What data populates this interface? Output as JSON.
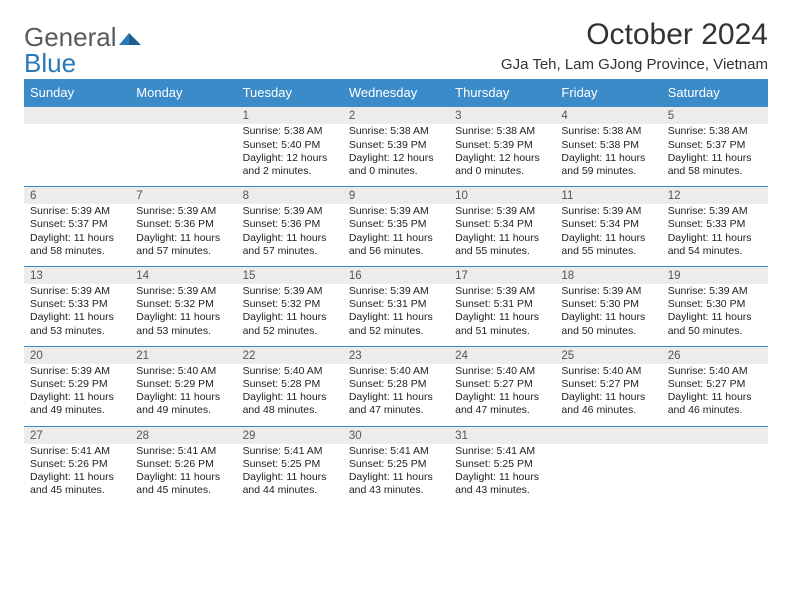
{
  "brand": {
    "part1": "General",
    "part2": "Blue"
  },
  "title": "October 2024",
  "location": "GJa Teh, Lam GJong Province, Vietnam",
  "colors": {
    "header_bg": "#3b8bc9",
    "header_text": "#ffffff",
    "daynum_bg": "#ececec",
    "daynum_border": "#3b8bc9",
    "brand_gray": "#5a5a5a",
    "brand_blue": "#2a7ab9"
  },
  "weekdays": [
    "Sunday",
    "Monday",
    "Tuesday",
    "Wednesday",
    "Thursday",
    "Friday",
    "Saturday"
  ],
  "first_weekday_index": 2,
  "days": [
    {
      "n": 1,
      "rise": "5:38 AM",
      "set": "5:40 PM",
      "dl": "12 hours and 2 minutes."
    },
    {
      "n": 2,
      "rise": "5:38 AM",
      "set": "5:39 PM",
      "dl": "12 hours and 0 minutes."
    },
    {
      "n": 3,
      "rise": "5:38 AM",
      "set": "5:39 PM",
      "dl": "12 hours and 0 minutes."
    },
    {
      "n": 4,
      "rise": "5:38 AM",
      "set": "5:38 PM",
      "dl": "11 hours and 59 minutes."
    },
    {
      "n": 5,
      "rise": "5:38 AM",
      "set": "5:37 PM",
      "dl": "11 hours and 58 minutes."
    },
    {
      "n": 6,
      "rise": "5:39 AM",
      "set": "5:37 PM",
      "dl": "11 hours and 58 minutes."
    },
    {
      "n": 7,
      "rise": "5:39 AM",
      "set": "5:36 PM",
      "dl": "11 hours and 57 minutes."
    },
    {
      "n": 8,
      "rise": "5:39 AM",
      "set": "5:36 PM",
      "dl": "11 hours and 57 minutes."
    },
    {
      "n": 9,
      "rise": "5:39 AM",
      "set": "5:35 PM",
      "dl": "11 hours and 56 minutes."
    },
    {
      "n": 10,
      "rise": "5:39 AM",
      "set": "5:34 PM",
      "dl": "11 hours and 55 minutes."
    },
    {
      "n": 11,
      "rise": "5:39 AM",
      "set": "5:34 PM",
      "dl": "11 hours and 55 minutes."
    },
    {
      "n": 12,
      "rise": "5:39 AM",
      "set": "5:33 PM",
      "dl": "11 hours and 54 minutes."
    },
    {
      "n": 13,
      "rise": "5:39 AM",
      "set": "5:33 PM",
      "dl": "11 hours and 53 minutes."
    },
    {
      "n": 14,
      "rise": "5:39 AM",
      "set": "5:32 PM",
      "dl": "11 hours and 53 minutes."
    },
    {
      "n": 15,
      "rise": "5:39 AM",
      "set": "5:32 PM",
      "dl": "11 hours and 52 minutes."
    },
    {
      "n": 16,
      "rise": "5:39 AM",
      "set": "5:31 PM",
      "dl": "11 hours and 52 minutes."
    },
    {
      "n": 17,
      "rise": "5:39 AM",
      "set": "5:31 PM",
      "dl": "11 hours and 51 minutes."
    },
    {
      "n": 18,
      "rise": "5:39 AM",
      "set": "5:30 PM",
      "dl": "11 hours and 50 minutes."
    },
    {
      "n": 19,
      "rise": "5:39 AM",
      "set": "5:30 PM",
      "dl": "11 hours and 50 minutes."
    },
    {
      "n": 20,
      "rise": "5:39 AM",
      "set": "5:29 PM",
      "dl": "11 hours and 49 minutes."
    },
    {
      "n": 21,
      "rise": "5:40 AM",
      "set": "5:29 PM",
      "dl": "11 hours and 49 minutes."
    },
    {
      "n": 22,
      "rise": "5:40 AM",
      "set": "5:28 PM",
      "dl": "11 hours and 48 minutes."
    },
    {
      "n": 23,
      "rise": "5:40 AM",
      "set": "5:28 PM",
      "dl": "11 hours and 47 minutes."
    },
    {
      "n": 24,
      "rise": "5:40 AM",
      "set": "5:27 PM",
      "dl": "11 hours and 47 minutes."
    },
    {
      "n": 25,
      "rise": "5:40 AM",
      "set": "5:27 PM",
      "dl": "11 hours and 46 minutes."
    },
    {
      "n": 26,
      "rise": "5:40 AM",
      "set": "5:27 PM",
      "dl": "11 hours and 46 minutes."
    },
    {
      "n": 27,
      "rise": "5:41 AM",
      "set": "5:26 PM",
      "dl": "11 hours and 45 minutes."
    },
    {
      "n": 28,
      "rise": "5:41 AM",
      "set": "5:26 PM",
      "dl": "11 hours and 45 minutes."
    },
    {
      "n": 29,
      "rise": "5:41 AM",
      "set": "5:25 PM",
      "dl": "11 hours and 44 minutes."
    },
    {
      "n": 30,
      "rise": "5:41 AM",
      "set": "5:25 PM",
      "dl": "11 hours and 43 minutes."
    },
    {
      "n": 31,
      "rise": "5:41 AM",
      "set": "5:25 PM",
      "dl": "11 hours and 43 minutes."
    }
  ],
  "labels": {
    "sunrise": "Sunrise:",
    "sunset": "Sunset:",
    "daylight": "Daylight:"
  }
}
